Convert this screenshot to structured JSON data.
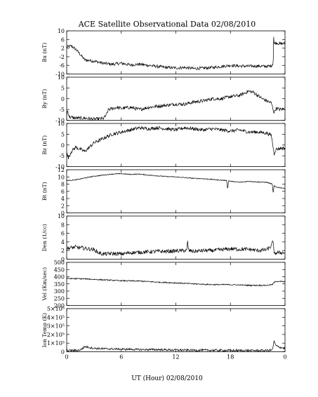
{
  "chart_data": {
    "type": "line",
    "title": "ACE Satellite Observational Data   02/08/2010",
    "xlabel": "UT (Hour)   02/08/2010",
    "x_ticks": [
      "0",
      "6",
      "12",
      "18",
      "0"
    ],
    "xlim": [
      0,
      24
    ],
    "panels": [
      {
        "ylabel": "Bx (nT)",
        "ylim": [
          -10,
          10
        ],
        "ytick_values": [
          -10,
          -6,
          -2,
          2,
          6,
          10
        ],
        "ytick_labels": [
          "-10",
          "-6",
          "-2",
          "2",
          "6",
          "10"
        ],
        "x": [
          0,
          0.5,
          1.0,
          1.5,
          2.0,
          3.0,
          4.0,
          5.0,
          6.0,
          7.0,
          8.0,
          9.0,
          10.0,
          11.0,
          12.0,
          13.0,
          14.0,
          15.0,
          16.0,
          17.0,
          18.0,
          19.0,
          20.0,
          21.0,
          22.0,
          22.5,
          22.7,
          22.75,
          22.8,
          23.0,
          23.5,
          24.0
        ],
        "values": [
          2.5,
          3.0,
          1.5,
          -1.0,
          -3.5,
          -4.0,
          -5.0,
          -5.5,
          -5.0,
          -5.8,
          -5.5,
          -6.0,
          -6.5,
          -7.0,
          -7.2,
          -7.0,
          -7.5,
          -7.3,
          -7.0,
          -6.5,
          -6.0,
          -6.3,
          -6.4,
          -6.3,
          -6.5,
          -6.2,
          -5.0,
          7.5,
          4.0,
          4.5,
          4.0,
          4.2
        ],
        "noise": 0.7
      },
      {
        "ylabel": "By (nT)",
        "ylim": [
          -10,
          10
        ],
        "ytick_values": [
          -10,
          -5,
          0,
          5,
          10
        ],
        "ytick_labels": [
          "-10",
          "-5",
          "0",
          "5",
          "10"
        ],
        "x": [
          0,
          0.1,
          0.3,
          1.0,
          2.0,
          3.0,
          4.0,
          4.3,
          4.6,
          5.5,
          6.0,
          7.0,
          8.0,
          9.0,
          10.0,
          11.0,
          12.0,
          13.0,
          14.0,
          15.0,
          16.0,
          17.0,
          18.0,
          19.0,
          20.0,
          20.5,
          21.0,
          21.5,
          22.0,
          22.5,
          22.8,
          23.0,
          23.5,
          24.0
        ],
        "values": [
          -7.5,
          -5.5,
          -8.5,
          -9.0,
          -9.0,
          -9.5,
          -9.2,
          -8.0,
          -5.0,
          -4.0,
          -4.5,
          -4.0,
          -5.0,
          -4.0,
          -3.5,
          -3.0,
          -2.5,
          -2.5,
          -1.5,
          -1.0,
          0.0,
          0.0,
          1.0,
          1.5,
          3.5,
          3.0,
          1.5,
          0.0,
          -1.0,
          -2.0,
          -6.5,
          -4.5,
          -5.0,
          -4.5
        ],
        "noise": 0.8
      },
      {
        "ylabel": "Bz (nT)",
        "ylim": [
          -10,
          10
        ],
        "ytick_values": [
          -10,
          -5,
          0,
          5,
          10
        ],
        "ytick_labels": [
          "-10",
          "-5",
          "0",
          "5",
          "10"
        ],
        "x": [
          0,
          0.2,
          0.5,
          1.0,
          1.5,
          2.0,
          3.0,
          4.0,
          5.0,
          6.0,
          7.0,
          8.0,
          9.0,
          10.0,
          11.0,
          12.0,
          13.0,
          14.0,
          15.0,
          16.0,
          17.0,
          18.0,
          19.0,
          20.0,
          21.0,
          22.0,
          22.5,
          22.8,
          23.0,
          23.5,
          24.0
        ],
        "values": [
          -4.0,
          -6.0,
          -3.0,
          -1.0,
          -2.0,
          -3.0,
          1.0,
          3.0,
          5.0,
          6.0,
          7.0,
          8.0,
          7.5,
          8.0,
          7.5,
          7.0,
          8.0,
          7.5,
          7.0,
          7.5,
          7.0,
          6.5,
          7.0,
          6.0,
          6.0,
          5.5,
          4.5,
          -4.0,
          -2.0,
          -1.5,
          -1.5
        ],
        "noise": 0.8
      },
      {
        "ylabel": "Bt (nT)",
        "ylim": [
          0,
          12
        ],
        "ytick_values": [
          0,
          2,
          4,
          6,
          8,
          10,
          12
        ],
        "ytick_labels": [
          "0",
          "2",
          "4",
          "6",
          "8",
          "10",
          "12"
        ],
        "x": [
          0,
          1.0,
          2.0,
          3.0,
          4.0,
          5.0,
          6.0,
          7.0,
          8.0,
          9.0,
          10.0,
          11.0,
          12.0,
          13.0,
          14.0,
          15.0,
          16.0,
          17.0,
          17.6,
          17.7,
          17.8,
          18.0,
          19.0,
          20.0,
          21.0,
          22.0,
          22.6,
          22.7,
          22.8,
          23.0,
          24.0
        ],
        "values": [
          9.0,
          9.2,
          9.7,
          10.2,
          10.5,
          10.8,
          10.9,
          10.7,
          10.8,
          10.5,
          10.3,
          10.1,
          10.0,
          9.8,
          9.6,
          9.5,
          9.3,
          9.1,
          9.0,
          6.5,
          9.0,
          8.8,
          8.5,
          8.8,
          8.6,
          8.5,
          8.0,
          5.5,
          7.5,
          7.2,
          6.8
        ],
        "noise": 0.12
      },
      {
        "ylabel": "Den (1/cc)",
        "ylim": [
          0,
          10
        ],
        "ytick_values": [
          0,
          2,
          4,
          6,
          8,
          10
        ],
        "ytick_labels": [
          "0",
          "2",
          "4",
          "6",
          "8",
          "10"
        ],
        "x": [
          0,
          1.0,
          2.0,
          3.0,
          3.5,
          4.0,
          5.0,
          6.0,
          7.0,
          8.0,
          9.0,
          10.0,
          11.0,
          12.0,
          13.0,
          13.2,
          13.3,
          13.4,
          14.0,
          15.0,
          16.0,
          17.0,
          18.0,
          19.0,
          20.0,
          21.0,
          22.0,
          22.5,
          22.7,
          22.8,
          23.0,
          24.0
        ],
        "values": [
          2.5,
          2.8,
          2.5,
          2.2,
          1.5,
          1.2,
          1.3,
          1.2,
          1.5,
          1.6,
          1.7,
          1.8,
          1.8,
          1.9,
          2.0,
          2.0,
          4.2,
          2.0,
          1.8,
          2.0,
          2.0,
          2.2,
          2.4,
          2.3,
          2.3,
          2.0,
          2.2,
          3.0,
          4.5,
          1.0,
          1.5,
          1.5
        ],
        "noise": 0.45
      },
      {
        "ylabel": "Vel (Km/sec)",
        "ylim": [
          200,
          500
        ],
        "ytick_values": [
          200,
          250,
          300,
          350,
          400,
          450,
          500
        ],
        "ytick_labels": [
          "200",
          "250",
          "300",
          "350",
          "400",
          "450",
          "500"
        ],
        "x": [
          0,
          2.0,
          4.0,
          6.0,
          8.0,
          10.0,
          12.0,
          14.0,
          16.0,
          18.0,
          20.0,
          22.0,
          22.6,
          22.8,
          23.0,
          24.0
        ],
        "values": [
          388,
          385,
          378,
          372,
          370,
          362,
          357,
          350,
          345,
          345,
          340,
          340,
          345,
          360,
          368,
          365
        ],
        "noise": 4
      },
      {
        "ylabel": "Ion Temp (K)",
        "ylim": [
          0,
          500000
        ],
        "ytick_values": [
          0,
          100000,
          200000,
          300000,
          400000,
          500000
        ],
        "ytick_labels": [
          "0",
          "1×10⁵",
          "2×10⁵",
          "3×10⁵",
          "4×10⁵",
          "5×10⁵"
        ],
        "x": [
          0,
          1.0,
          1.5,
          2.0,
          3.0,
          4.0,
          6.0,
          8.0,
          10.0,
          12.0,
          14.0,
          16.0,
          18.0,
          20.0,
          22.0,
          22.6,
          22.8,
          23.0,
          23.5,
          24.0
        ],
        "values": [
          15000,
          15000,
          20000,
          60000,
          40000,
          35000,
          30000,
          25000,
          25000,
          20000,
          18000,
          18000,
          15000,
          15000,
          15000,
          20000,
          120000,
          70000,
          50000,
          40000
        ],
        "noise": 12000
      }
    ]
  }
}
